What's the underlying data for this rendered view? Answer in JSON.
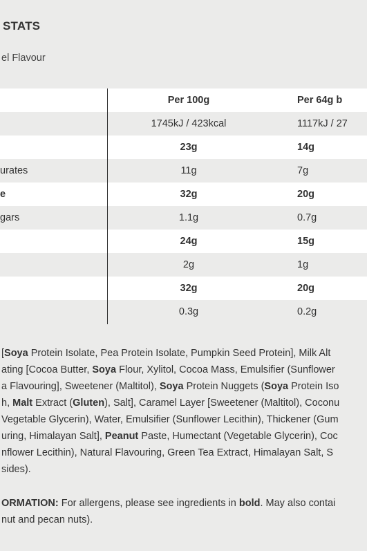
{
  "header": {
    "title": "STATS",
    "subtitle": "el Flavour"
  },
  "table": {
    "columns": [
      "Per 100g",
      "Per 64g b"
    ],
    "energy": [
      "1745kJ / 423kcal",
      "1117kJ / 27"
    ],
    "rows": [
      {
        "label": "",
        "c1": "23g",
        "c2": "14g",
        "bold": true
      },
      {
        "label": "urates",
        "c1": "11g",
        "c2": "7g",
        "bold": false
      },
      {
        "label": "e",
        "c1": "32g",
        "c2": "20g",
        "bold": true
      },
      {
        "label": "gars",
        "c1": "1.1g",
        "c2": "0.7g",
        "bold": false
      },
      {
        "label": "",
        "c1": "24g",
        "c2": "15g",
        "bold": true
      },
      {
        "label": "",
        "c1": "2g",
        "c2": "1g",
        "bold": false
      },
      {
        "label": "",
        "c1": "32g",
        "c2": "20g",
        "bold": true
      },
      {
        "label": "",
        "c1": "0.3g",
        "c2": "0.2g",
        "bold": false
      }
    ]
  },
  "ingredients": [
    [
      {
        "t": "[",
        "b": false
      },
      {
        "t": "Soya",
        "b": true
      },
      {
        "t": " Protein Isolate, Pea Protein Isolate, Pumpkin Seed Protein], Milk Alt",
        "b": false
      }
    ],
    [
      {
        "t": "ating [Cocoa Butter, ",
        "b": false
      },
      {
        "t": "Soya",
        "b": true
      },
      {
        "t": " Flour, Xylitol, Cocoa Mass, Emulsifier (Sunflower",
        "b": false
      }
    ],
    [
      {
        "t": "a Flavouring], Sweetener (Maltitol), ",
        "b": false
      },
      {
        "t": "Soya",
        "b": true
      },
      {
        "t": " Protein Nuggets (",
        "b": false
      },
      {
        "t": "Soya",
        "b": true
      },
      {
        "t": " Protein Iso",
        "b": false
      }
    ],
    [
      {
        "t": "h, ",
        "b": false
      },
      {
        "t": "Malt",
        "b": true
      },
      {
        "t": " Extract (",
        "b": false
      },
      {
        "t": "Gluten",
        "b": true
      },
      {
        "t": "), Salt], Caramel Layer [Sweetener (Maltitol), Coconu",
        "b": false
      }
    ],
    [
      {
        "t": "Vegetable Glycerin), Water, Emulsifier (Sunflower Lecithin), Thickener (Gum",
        "b": false
      }
    ],
    [
      {
        "t": "uring, Himalayan Salt], ",
        "b": false
      },
      {
        "t": "Peanut",
        "b": true
      },
      {
        "t": " Paste, Humectant (Vegetable Glycerin), Coc",
        "b": false
      }
    ],
    [
      {
        "t": "nflower Lecithin), Natural Flavouring, Green Tea Extract, Himalayan Salt, S",
        "b": false
      }
    ],
    [
      {
        "t": "sides).",
        "b": false
      }
    ]
  ],
  "allergy": [
    [
      {
        "t": "ORMATION:",
        "b": true
      },
      {
        "t": " For allergens, please see ingredients in ",
        "b": false
      },
      {
        "t": "bold",
        "b": true
      },
      {
        "t": ". May also contai",
        "b": false
      }
    ],
    [
      {
        "t": "nut and pecan nuts).",
        "b": false
      }
    ]
  ]
}
